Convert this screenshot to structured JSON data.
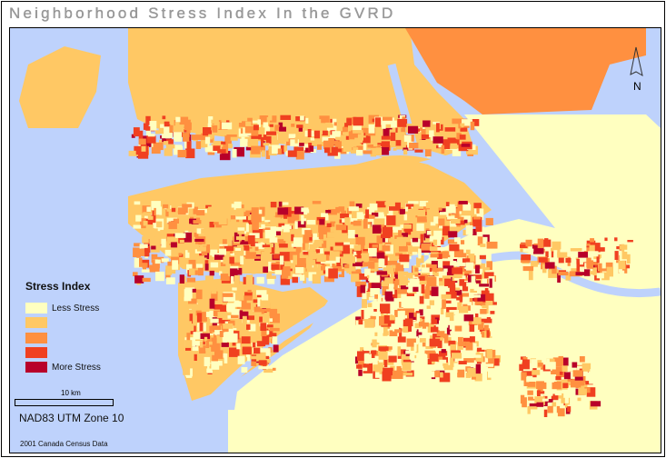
{
  "title": "Neighborhood Stress Index In the GVRD",
  "legend": {
    "title": "Stress Index",
    "classes": [
      {
        "label": "Less Stress",
        "color": "#ffffc0"
      },
      {
        "label": "",
        "color": "#ffc864"
      },
      {
        "label": "",
        "color": "#ff9040"
      },
      {
        "label": "",
        "color": "#f04020"
      },
      {
        "label": "More Stress",
        "color": "#b8002a"
      }
    ]
  },
  "scale_bar": {
    "label": "10 km"
  },
  "projection": "NAD83 UTM Zone 10",
  "source": "2001 Canada Census Data",
  "north_arrow": {
    "label": "N",
    "icon": "north-arrow-icon"
  },
  "water_color": "#bed2fc"
}
